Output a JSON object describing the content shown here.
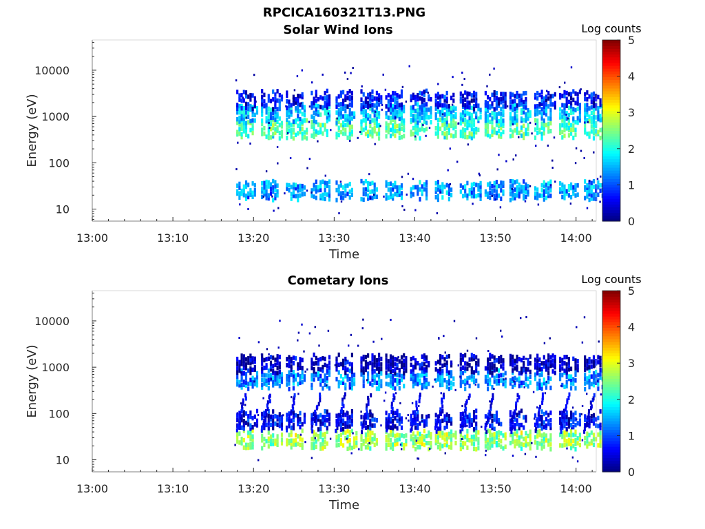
{
  "figure": {
    "title": "RPCICA160321T13.PNG"
  },
  "chart_data": [
    {
      "type": "heatmap",
      "title": "Solar Wind Ions",
      "xlabel": "Time",
      "ylabel": "Energy (eV)",
      "x_ticks": [
        "13:00",
        "13:10",
        "13:20",
        "13:30",
        "13:40",
        "13:50",
        "14:00"
      ],
      "x_range_minutes": [
        0,
        62.5
      ],
      "y_scale": "log",
      "y_ticks": [
        10,
        100,
        1000,
        10000
      ],
      "y_tick_labels": [
        "10",
        "100",
        "1000",
        "10000"
      ],
      "ylim": [
        5.5,
        45000
      ],
      "colorbar": {
        "label": "Log counts",
        "range": [
          0,
          5
        ],
        "ticks": [
          "0",
          "1",
          "2",
          "3",
          "4",
          "5"
        ],
        "colormap": "jet"
      },
      "data_start_minute": 17.5,
      "sweep_period_minutes": 3.08,
      "bands": [
        {
          "energy_eV": 28,
          "log_counts": 1.4
        },
        {
          "energy_eV": 600,
          "log_counts": 2.2
        },
        {
          "energy_eV": 1300,
          "log_counts": 1.6
        },
        {
          "energy_eV": 2500,
          "log_counts": 0.7
        }
      ]
    },
    {
      "type": "heatmap",
      "title": "Cometary Ions",
      "xlabel": "Time",
      "ylabel": "Energy (eV)",
      "x_ticks": [
        "13:00",
        "13:10",
        "13:20",
        "13:30",
        "13:40",
        "13:50",
        "14:00"
      ],
      "x_range_minutes": [
        0,
        62.5
      ],
      "y_scale": "log",
      "y_ticks": [
        10,
        100,
        1000,
        10000
      ],
      "y_tick_labels": [
        "10",
        "100",
        "1000",
        "10000"
      ],
      "ylim": [
        5.5,
        45000
      ],
      "colorbar": {
        "label": "Log counts",
        "range": [
          0,
          5
        ],
        "ticks": [
          "0",
          "1",
          "2",
          "3",
          "4",
          "5"
        ],
        "colormap": "jet"
      },
      "data_start_minute": 17.5,
      "sweep_period_minutes": 3.08,
      "bands": [
        {
          "energy_eV": 30,
          "log_counts": 2.6
        },
        {
          "energy_eV": 80,
          "log_counts": 0.6
        },
        {
          "energy_eV": 600,
          "log_counts": 1.3
        },
        {
          "energy_eV": 1300,
          "log_counts": 0.3
        }
      ]
    }
  ]
}
